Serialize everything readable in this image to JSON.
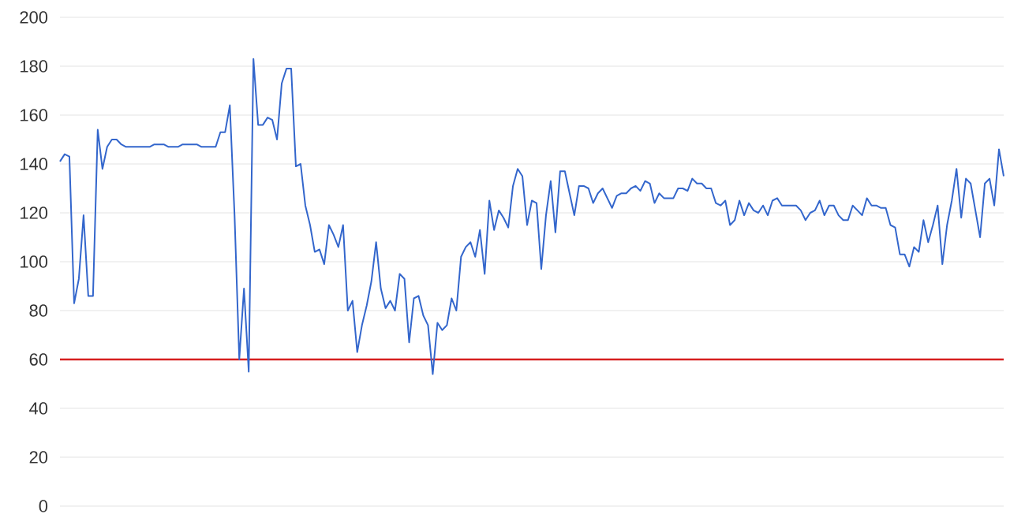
{
  "chart_data": {
    "type": "line",
    "categories": [
      null,
      null,
      null,
      null,
      null,
      null,
      null,
      null,
      null,
      null,
      null,
      null,
      null,
      null,
      null,
      null,
      null,
      null,
      null,
      null,
      null,
      null,
      null,
      null,
      null,
      null,
      null,
      null,
      null,
      null,
      null,
      null,
      null,
      null,
      null,
      null,
      null,
      null,
      null,
      null,
      null,
      null,
      null,
      null,
      null,
      null,
      null,
      null,
      null,
      null,
      null,
      null,
      null,
      null,
      null,
      null,
      null,
      null,
      null,
      null,
      null,
      null,
      null,
      null,
      null,
      null,
      null,
      null,
      null,
      null,
      null,
      null,
      null,
      null,
      null,
      null,
      null,
      null,
      null,
      null,
      null,
      null,
      null,
      null,
      null,
      null,
      null,
      null,
      null,
      null,
      null,
      null,
      null,
      null,
      null,
      null,
      null,
      null,
      null,
      null,
      null,
      null,
      null,
      null,
      null,
      null,
      null,
      null,
      null,
      null,
      null,
      null,
      null,
      null,
      null,
      null,
      null,
      null,
      null,
      null,
      null,
      null,
      null,
      null,
      null,
      null,
      null,
      null,
      null,
      null,
      null,
      null,
      null,
      null,
      null,
      null,
      null,
      null,
      null,
      null,
      null,
      null,
      null,
      null,
      null,
      null,
      null,
      null,
      null,
      null,
      null,
      null,
      null,
      null,
      null,
      null,
      null,
      null,
      null,
      null,
      null,
      null,
      null,
      null,
      null,
      null,
      null,
      null,
      null,
      null,
      null,
      null,
      null,
      null,
      null,
      null,
      null,
      null,
      null,
      null,
      null,
      null,
      null,
      null,
      null,
      null,
      null,
      null,
      null,
      null,
      null,
      null,
      null,
      null,
      null,
      null,
      null,
      null,
      null,
      null,
      null
    ],
    "values": [
      141,
      144,
      143,
      83,
      93,
      119,
      86,
      86,
      154,
      138,
      147,
      150,
      150,
      148,
      147,
      147,
      147,
      147,
      147,
      147,
      148,
      148,
      148,
      147,
      147,
      147,
      148,
      148,
      148,
      148,
      147,
      147,
      147,
      147,
      153,
      153,
      164,
      119,
      60,
      89,
      55,
      183,
      156,
      156,
      159,
      158,
      150,
      173,
      179,
      179,
      139,
      140,
      123,
      115,
      104,
      105,
      99,
      115,
      111,
      106,
      115,
      80,
      84,
      63,
      74,
      82,
      92,
      108,
      89,
      81,
      84,
      80,
      95,
      93,
      67,
      85,
      86,
      78,
      74,
      54,
      75,
      72,
      74,
      85,
      80,
      102,
      106,
      108,
      102,
      113,
      95,
      125,
      113,
      121,
      118,
      114,
      131,
      138,
      135,
      115,
      125,
      124,
      97,
      119,
      133,
      112,
      137,
      137,
      128,
      119,
      131,
      131,
      130,
      124,
      128,
      130,
      126,
      122,
      127,
      128,
      128,
      130,
      131,
      129,
      133,
      132,
      124,
      128,
      126,
      126,
      126,
      130,
      130,
      129,
      134,
      132,
      132,
      130,
      130,
      124,
      123,
      125,
      115,
      117,
      125,
      119,
      124,
      121,
      120,
      123,
      119,
      125,
      126,
      123,
      123,
      123,
      123,
      121,
      117,
      120,
      121,
      125,
      119,
      123,
      123,
      119,
      117,
      117,
      123,
      121,
      119,
      126,
      123,
      123,
      122,
      122,
      115,
      114,
      103,
      103,
      98,
      106,
      104,
      117,
      108,
      115,
      123,
      99,
      115,
      125,
      138,
      118,
      134,
      132,
      121,
      110,
      132,
      134,
      123,
      146,
      135
    ],
    "color": "#3366cc",
    "ylim": [
      0,
      200
    ],
    "yticks": [
      0,
      20,
      40,
      60,
      80,
      100,
      120,
      140,
      160,
      180,
      200
    ],
    "grid": "y",
    "tick_labels": "y",
    "ref_lines": [
      {
        "axis": "y",
        "value": 60,
        "color": "#d62020"
      }
    ]
  }
}
